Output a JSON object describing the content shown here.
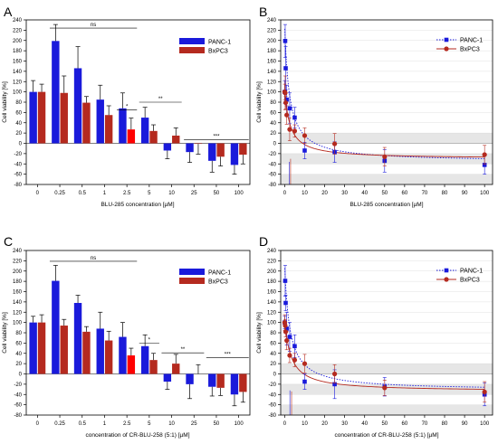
{
  "chart_data": [
    {
      "id": "A",
      "panel_label": "A",
      "type": "bar",
      "categories": [
        "0",
        "0.25",
        "0.5",
        "1",
        "2.5",
        "5",
        "10",
        "25",
        "50",
        "100"
      ],
      "xlabel": "BLU-285 concentration [µM]",
      "ylabel": "Cell viability [%]",
      "ylim": [
        -80,
        240
      ],
      "yticks": [
        -80,
        -60,
        -40,
        -20,
        0,
        20,
        40,
        60,
        80,
        100,
        120,
        140,
        160,
        180,
        200,
        220,
        240
      ],
      "series": [
        {
          "name": "PANC-1",
          "color": "#1a1adb",
          "values": [
            100,
            199,
            146,
            85,
            68,
            50,
            -14,
            -17,
            -34,
            -42
          ],
          "errors": [
            22,
            32,
            42,
            28,
            30,
            20,
            16,
            20,
            22,
            18
          ]
        },
        {
          "name": "BxPC3",
          "color": "#b52a1f",
          "values": [
            100,
            98,
            79,
            55,
            27,
            24,
            15,
            -1,
            -26,
            -22
          ],
          "errors": [
            15,
            33,
            12,
            18,
            22,
            12,
            15,
            20,
            18,
            18
          ]
        }
      ],
      "highlight_color": "#ff0000",
      "highlight_index": 4,
      "significance": [
        {
          "label": "ns",
          "from": 1,
          "to": 4,
          "y": 224
        },
        {
          "label": "*",
          "from": 4,
          "to": 4,
          "y": 65
        },
        {
          "label": "**",
          "from": 5,
          "to": 6,
          "y": 80
        },
        {
          "label": "***",
          "from": 7,
          "to": 9,
          "y": 7
        }
      ]
    },
    {
      "id": "B",
      "panel_label": "B",
      "type": "scatter",
      "xlabel": "BLU-285 concentration [µM]",
      "ylabel": "Cell viability [%]",
      "xlim": [
        -2,
        104
      ],
      "xticks": [
        0,
        10,
        20,
        30,
        40,
        50,
        60,
        70,
        80,
        90,
        100
      ],
      "ylim": [
        -80,
        240
      ],
      "yticks": [
        -80,
        -60,
        -40,
        -20,
        0,
        20,
        40,
        60,
        80,
        100,
        120,
        140,
        160,
        180,
        200,
        220,
        240
      ],
      "fit_panc": {
        "bottom": -36,
        "top": 228,
        "ic50": 2.4
      },
      "fit_bx": {
        "bottom": -30,
        "top": 108,
        "ic50": 2.5
      },
      "series": [
        {
          "name": "PANC-1",
          "color": "#1a1adb",
          "marker": "square",
          "line": "dotted",
          "x": [
            0,
            0.25,
            0.5,
            1,
            2.5,
            5,
            10,
            25,
            50,
            100
          ],
          "y": [
            100,
            199,
            146,
            85,
            68,
            50,
            -14,
            -17,
            -34,
            -42
          ],
          "errors": [
            22,
            32,
            42,
            28,
            30,
            20,
            16,
            20,
            22,
            18
          ]
        },
        {
          "name": "BxPC3",
          "color": "#b52a1f",
          "marker": "circle",
          "line": "solid",
          "x": [
            0,
            0.25,
            0.5,
            1,
            2.5,
            5,
            10,
            25,
            50,
            100
          ],
          "y": [
            100,
            98,
            79,
            55,
            27,
            24,
            15,
            -1,
            -26,
            -22
          ],
          "errors": [
            15,
            33,
            12,
            18,
            22,
            12,
            15,
            20,
            18,
            18
          ]
        }
      ]
    },
    {
      "id": "C",
      "panel_label": "C",
      "type": "bar",
      "categories": [
        "0",
        "0.25",
        "0.5",
        "1",
        "2.5",
        "5",
        "10",
        "25",
        "50",
        "100"
      ],
      "xlabel": "concentration of CR-BLU-258 (5:1) [µM]",
      "ylabel": "Cell viability [%]",
      "ylim": [
        -80,
        240
      ],
      "yticks": [
        -80,
        -60,
        -40,
        -20,
        0,
        20,
        40,
        60,
        80,
        100,
        120,
        140,
        160,
        180,
        200,
        220,
        240
      ],
      "series": [
        {
          "name": "PANC-1",
          "color": "#1a1adb",
          "values": [
            100,
            181,
            138,
            88,
            72,
            54,
            -15,
            -20,
            -25,
            -40
          ],
          "errors": [
            12,
            30,
            15,
            32,
            28,
            22,
            15,
            28,
            18,
            22
          ]
        },
        {
          "name": "BxPC3",
          "color": "#b52a1f",
          "values": [
            100,
            94,
            82,
            65,
            36,
            27,
            20,
            0,
            -27,
            -35
          ],
          "errors": [
            15,
            12,
            10,
            18,
            14,
            13,
            18,
            18,
            15,
            20
          ]
        }
      ],
      "highlight_color": "#ff0000",
      "highlight_index": 4,
      "significance": [
        {
          "label": "ns",
          "from": 1,
          "to": 4,
          "y": 219
        },
        {
          "label": "*",
          "from": 5,
          "to": 5,
          "y": 60
        },
        {
          "label": "**",
          "from": 6,
          "to": 7,
          "y": 41
        },
        {
          "label": "***",
          "from": 8,
          "to": 9,
          "y": 32
        }
      ]
    },
    {
      "id": "D",
      "panel_label": "D",
      "type": "scatter",
      "xlabel": "concentration of CR-BLU-258 (5:1) [µM]",
      "ylabel": "Cell viability [%]",
      "xlim": [
        -2,
        104
      ],
      "xticks": [
        0,
        10,
        20,
        30,
        40,
        50,
        60,
        70,
        80,
        90,
        100
      ],
      "ylim": [
        -80,
        240
      ],
      "yticks": [
        -80,
        -60,
        -40,
        -20,
        0,
        20,
        40,
        60,
        80,
        100,
        120,
        140,
        160,
        180,
        200,
        220,
        240
      ],
      "fit_panc": {
        "bottom": -32,
        "top": 210,
        "ic50": 2.6
      },
      "fit_bx": {
        "bottom": -34,
        "top": 108,
        "ic50": 3.0
      },
      "series": [
        {
          "name": "PANC-1",
          "color": "#1a1adb",
          "marker": "square",
          "line": "dotted",
          "x": [
            0,
            0.25,
            0.5,
            1,
            2.5,
            5,
            10,
            25,
            50,
            100
          ],
          "y": [
            100,
            181,
            138,
            88,
            72,
            54,
            -15,
            -20,
            -25,
            -40
          ],
          "errors": [
            12,
            30,
            15,
            32,
            28,
            22,
            15,
            28,
            18,
            22
          ]
        },
        {
          "name": "BxPC3",
          "color": "#b52a1f",
          "marker": "circle",
          "line": "solid",
          "x": [
            0,
            0.25,
            0.5,
            1,
            2.5,
            5,
            10,
            25,
            50,
            100
          ],
          "y": [
            100,
            94,
            82,
            65,
            36,
            27,
            20,
            0,
            -27,
            -35
          ],
          "errors": [
            15,
            12,
            10,
            18,
            14,
            13,
            18,
            18,
            15,
            20
          ]
        }
      ]
    }
  ]
}
